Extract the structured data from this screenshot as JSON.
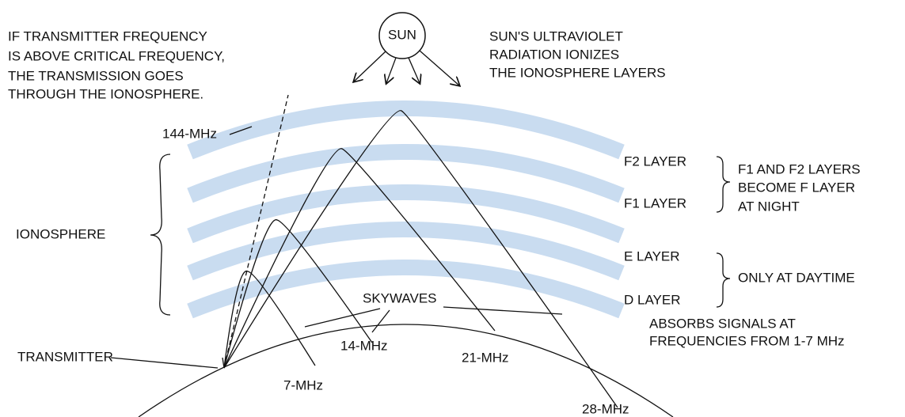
{
  "sun": "SUN",
  "above_critical_note": [
    "IF TRANSMITTER FREQUENCY",
    "IS ABOVE CRITICAL FREQUENCY,",
    "THE TRANSMISSION GOES",
    "THROUGH THE IONOSPHERE."
  ],
  "sun_note": [
    "SUN'S ULTRAVIOLET",
    "RADIATION IONIZES",
    "THE IONOSPHERE LAYERS"
  ],
  "layers": [
    "F2 LAYER",
    "F1 LAYER",
    "E LAYER",
    "D LAYER"
  ],
  "f_layer_note": [
    "F1 AND F2 LAYERS",
    "BECOME F LAYER",
    "AT NIGHT"
  ],
  "daytime_note": "ONLY AT DAYTIME",
  "ionosphere": "IONOSPHERE",
  "frequencies": [
    "144-MHz",
    "7-MHz",
    "14-MHz",
    "21-MHz",
    "28-MHz"
  ],
  "skywaves": "SKYWAVES",
  "transmitter": "TRANSMITTER",
  "absorb_note": [
    "ABSORBS SIGNALS AT",
    "FREQUENCIES FROM 1-7 MHz"
  ]
}
